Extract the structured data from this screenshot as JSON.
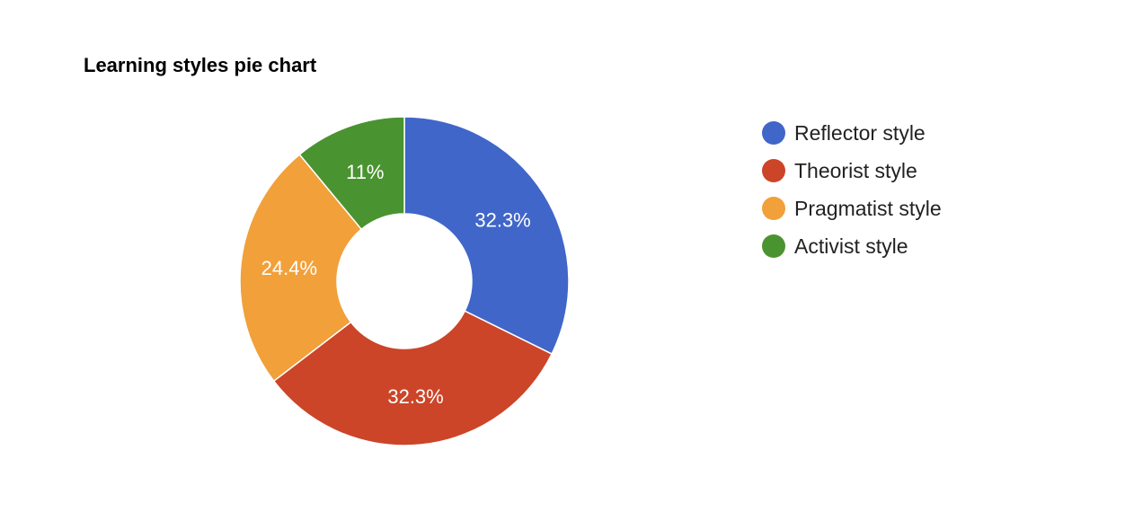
{
  "chart_data": {
    "type": "pie",
    "donut": true,
    "title": "Learning styles pie chart",
    "legend_position": "right",
    "slices": [
      {
        "label": "Reflector style",
        "value": 32.3,
        "display": "32.3%",
        "color": "#4066c9"
      },
      {
        "label": "Theorist style",
        "value": 32.3,
        "display": "32.3%",
        "color": "#cc4528"
      },
      {
        "label": "Pragmatist style",
        "value": 24.4,
        "display": "24.4%",
        "color": "#f1a03a"
      },
      {
        "label": "Activist style",
        "value": 11.0,
        "display": "11%",
        "color": "#4a9331"
      }
    ]
  }
}
